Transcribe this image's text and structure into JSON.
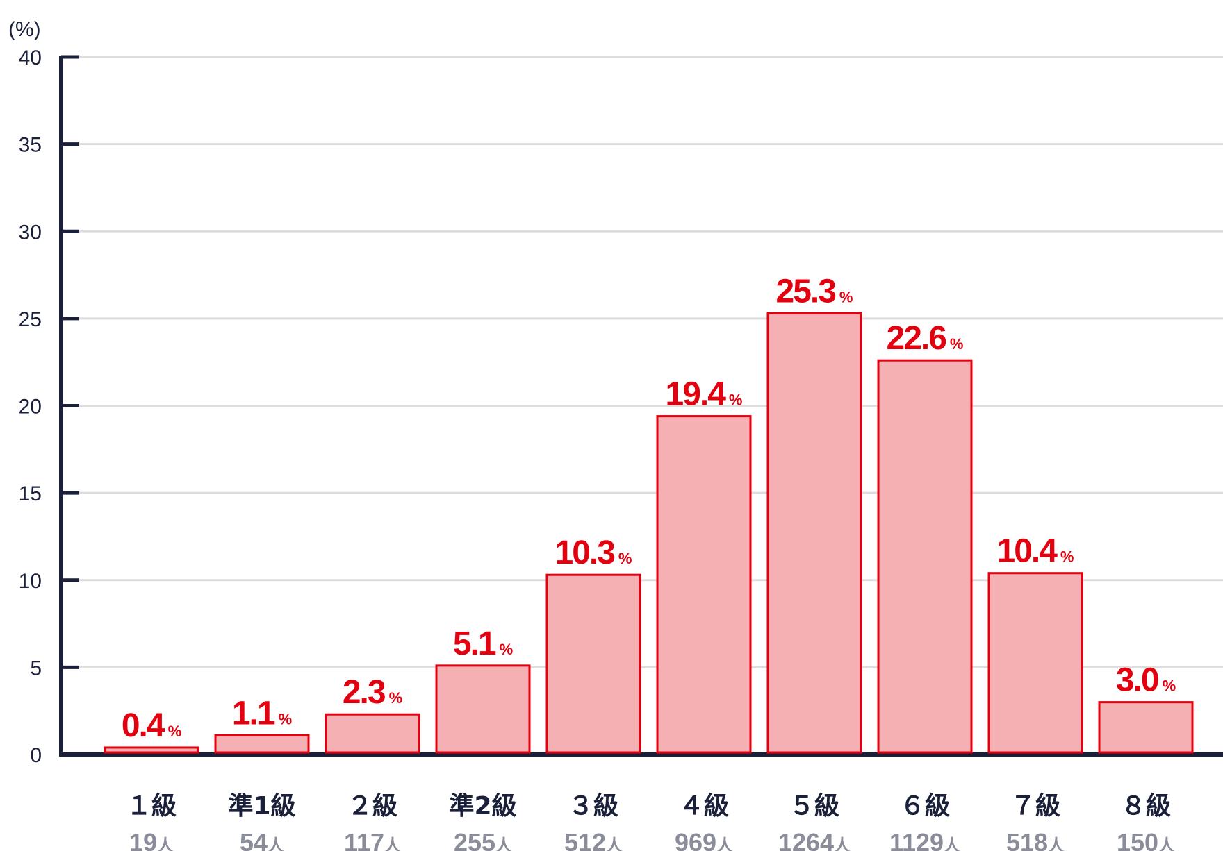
{
  "chart_data": {
    "type": "bar",
    "unit_label": "(%)",
    "ylim": [
      0,
      40
    ],
    "y_ticks": [
      0,
      5,
      10,
      15,
      20,
      25,
      30,
      35,
      40
    ],
    "grid": true,
    "categories": [
      "1級",
      "準1級",
      "2級",
      "準2級",
      "3級",
      "4級",
      "5級",
      "6級",
      "7級",
      "8級"
    ],
    "category_labels": [
      "１級",
      "準1級",
      "２級",
      "準2級",
      "３級",
      "４級",
      "５級",
      "６級",
      "７級",
      "８級"
    ],
    "values": [
      0.4,
      1.1,
      2.3,
      5.1,
      10.3,
      19.4,
      25.3,
      22.6,
      10.4,
      3.0
    ],
    "value_labels": [
      "0.4",
      "1.1",
      "2.3",
      "5.1",
      "10.3",
      "19.4",
      "25.3",
      "22.6",
      "10.4",
      "3.0"
    ],
    "value_suffix": "%",
    "counts": [
      "19",
      "54",
      "117",
      "255",
      "512",
      "969",
      "1264",
      "1129",
      "518",
      "150"
    ],
    "count_suffix": "人",
    "colors": {
      "bar_fill": "#f4b0b2",
      "bar_stroke": "#e3000f",
      "value_text": "#e3000f",
      "axis": "#1a1f3a",
      "grid": "#dddddd",
      "count_text": "#8a8d99"
    }
  }
}
